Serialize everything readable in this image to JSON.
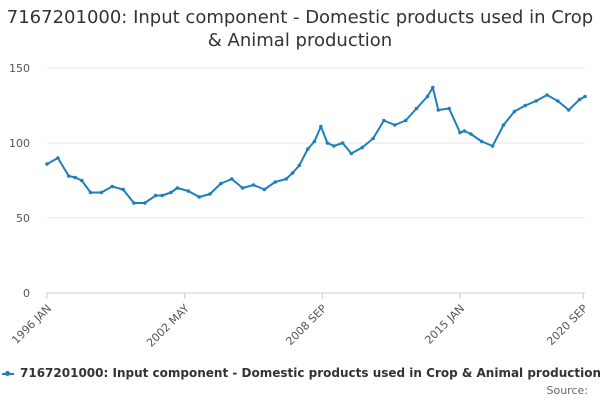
{
  "chart_data": {
    "type": "line",
    "title": "7167201000: Input component - Domestic products used in Crop & Animal production",
    "xlabel": "",
    "ylabel": "",
    "ylim": [
      0,
      150
    ],
    "yticks": [
      "0",
      "50",
      "100",
      "150"
    ],
    "xticks": [
      "1996 JAN",
      "2002 MAY",
      "2008 SEP",
      "2015 JAN",
      "2020 SEP"
    ],
    "grid": true,
    "legend": "bottom",
    "series": [
      {
        "name": "7167201000: Input component - Domestic products used in Crop & Animal production",
        "color": "#1f7fba",
        "x": [
          1996.0,
          1996.5,
          1997.0,
          1997.3,
          1997.6,
          1998.0,
          1998.5,
          1999.0,
          1999.5,
          2000.0,
          2000.5,
          2001.0,
          2001.3,
          2001.7,
          2002.0,
          2002.5,
          2003.0,
          2003.5,
          2004.0,
          2004.5,
          2005.0,
          2005.5,
          2006.0,
          2006.5,
          2007.0,
          2007.3,
          2007.6,
          2008.0,
          2008.3,
          2008.6,
          2008.9,
          2009.2,
          2009.6,
          2010.0,
          2010.5,
          2011.0,
          2011.5,
          2012.0,
          2012.5,
          2013.0,
          2013.5,
          2013.75,
          2014.0,
          2014.5,
          2015.0,
          2015.2,
          2015.5,
          2016.0,
          2016.5,
          2017.0,
          2017.5,
          2018.0,
          2018.5,
          2019.0,
          2019.5,
          2020.0,
          2020.5,
          2020.75
        ],
        "values": [
          86,
          90,
          78,
          77,
          75,
          67,
          67,
          71,
          69,
          60,
          60,
          65,
          65,
          67,
          70,
          68,
          64,
          66,
          73,
          76,
          70,
          72,
          69,
          74,
          76,
          80,
          85,
          96,
          101,
          111,
          100,
          98,
          100,
          93,
          97,
          103,
          115,
          112,
          115,
          123,
          131,
          137,
          122,
          123,
          107,
          108,
          106,
          101,
          98,
          112,
          121,
          125,
          128,
          132,
          128,
          122,
          129,
          131
        ]
      }
    ]
  },
  "source_label": "Source:"
}
